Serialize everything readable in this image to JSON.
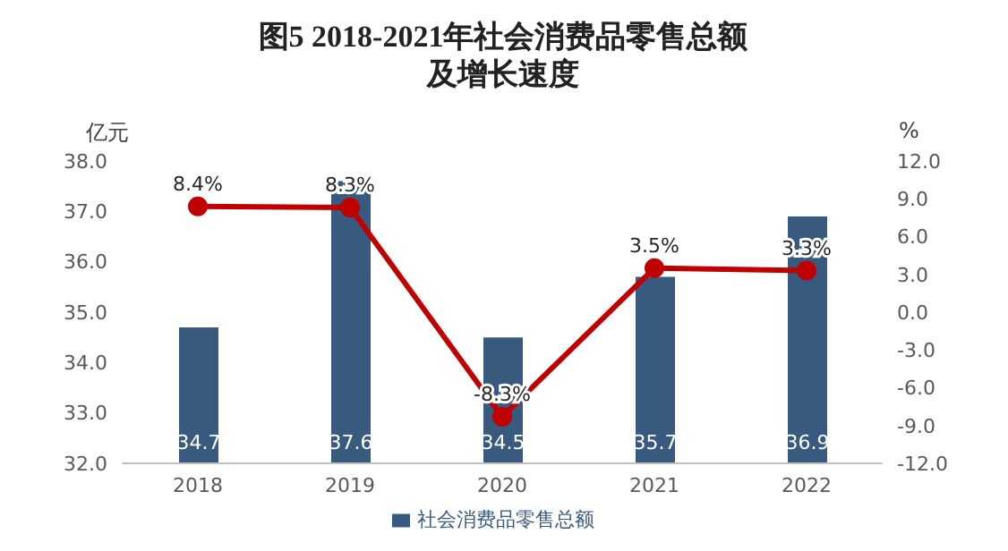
{
  "chart_data": {
    "type": "bar",
    "title": "图5  2018-2021年社会消费品零售总额及增长速度",
    "ylabel": "亿元",
    "y2label": "%",
    "categories": [
      "2018",
      "2019",
      "2020",
      "2021",
      "2022"
    ],
    "series": [
      {
        "name": "社会消费品零售总额",
        "color": "#385a7e",
        "values": [
          34.7,
          37.6,
          34.5,
          35.7,
          36.9
        ],
        "value_labels": [
          "34.7",
          "37.6",
          "34.5",
          "35.7",
          "36.9"
        ]
      },
      {
        "type": "line",
        "axis": "y2",
        "color": "#c00000",
        "marker": "circle",
        "values": [
          8.4,
          8.3,
          -8.3,
          3.5,
          3.3
        ],
        "value_labels": [
          "8.4%",
          "8.3%",
          "-8.3%",
          "3.5%",
          "3.3%"
        ]
      }
    ],
    "ylim": [
      32,
      38
    ],
    "yticks": [
      {
        "value": 32,
        "label": "32.0"
      },
      {
        "value": 33,
        "label": "33.0"
      },
      {
        "value": 34,
        "label": "34.0"
      },
      {
        "value": 35,
        "label": "35.0"
      },
      {
        "value": 36,
        "label": "36.0"
      },
      {
        "value": 37,
        "label": "37.0"
      },
      {
        "value": 38,
        "label": "38.0"
      }
    ],
    "y2lim": [
      -12,
      12
    ],
    "y2ticks": [
      {
        "value": -12,
        "label": "-12.0"
      },
      {
        "value": -9,
        "label": "-9.0"
      },
      {
        "value": -6,
        "label": "-6.0"
      },
      {
        "value": -3,
        "label": "-3.0"
      },
      {
        "value": 0,
        "label": "0.0"
      },
      {
        "value": 3,
        "label": "3.0"
      },
      {
        "value": 6,
        "label": "6.0"
      },
      {
        "value": 9,
        "label": "9.0"
      },
      {
        "value": 12,
        "label": "12.0"
      }
    ],
    "grid": false,
    "legend": "bottom"
  }
}
